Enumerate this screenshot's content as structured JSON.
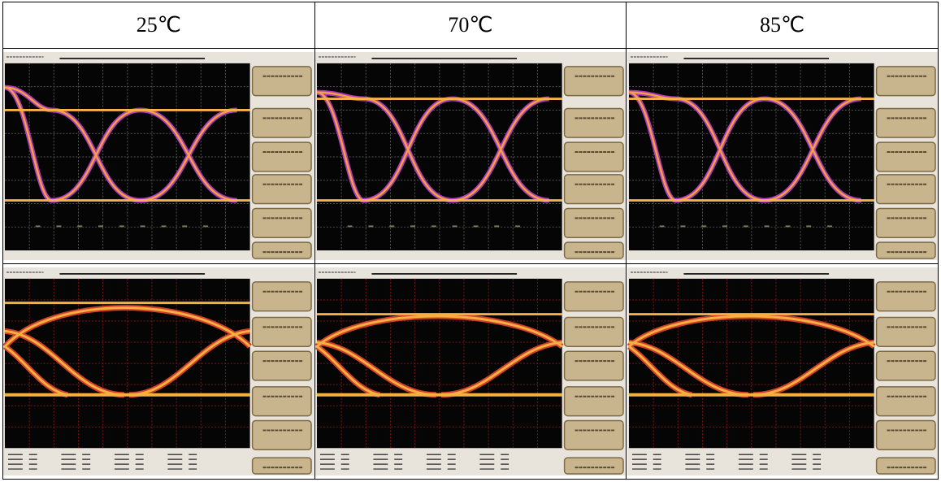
{
  "header": {
    "columns": [
      "25℃",
      "70℃",
      "85℃"
    ]
  }
}
